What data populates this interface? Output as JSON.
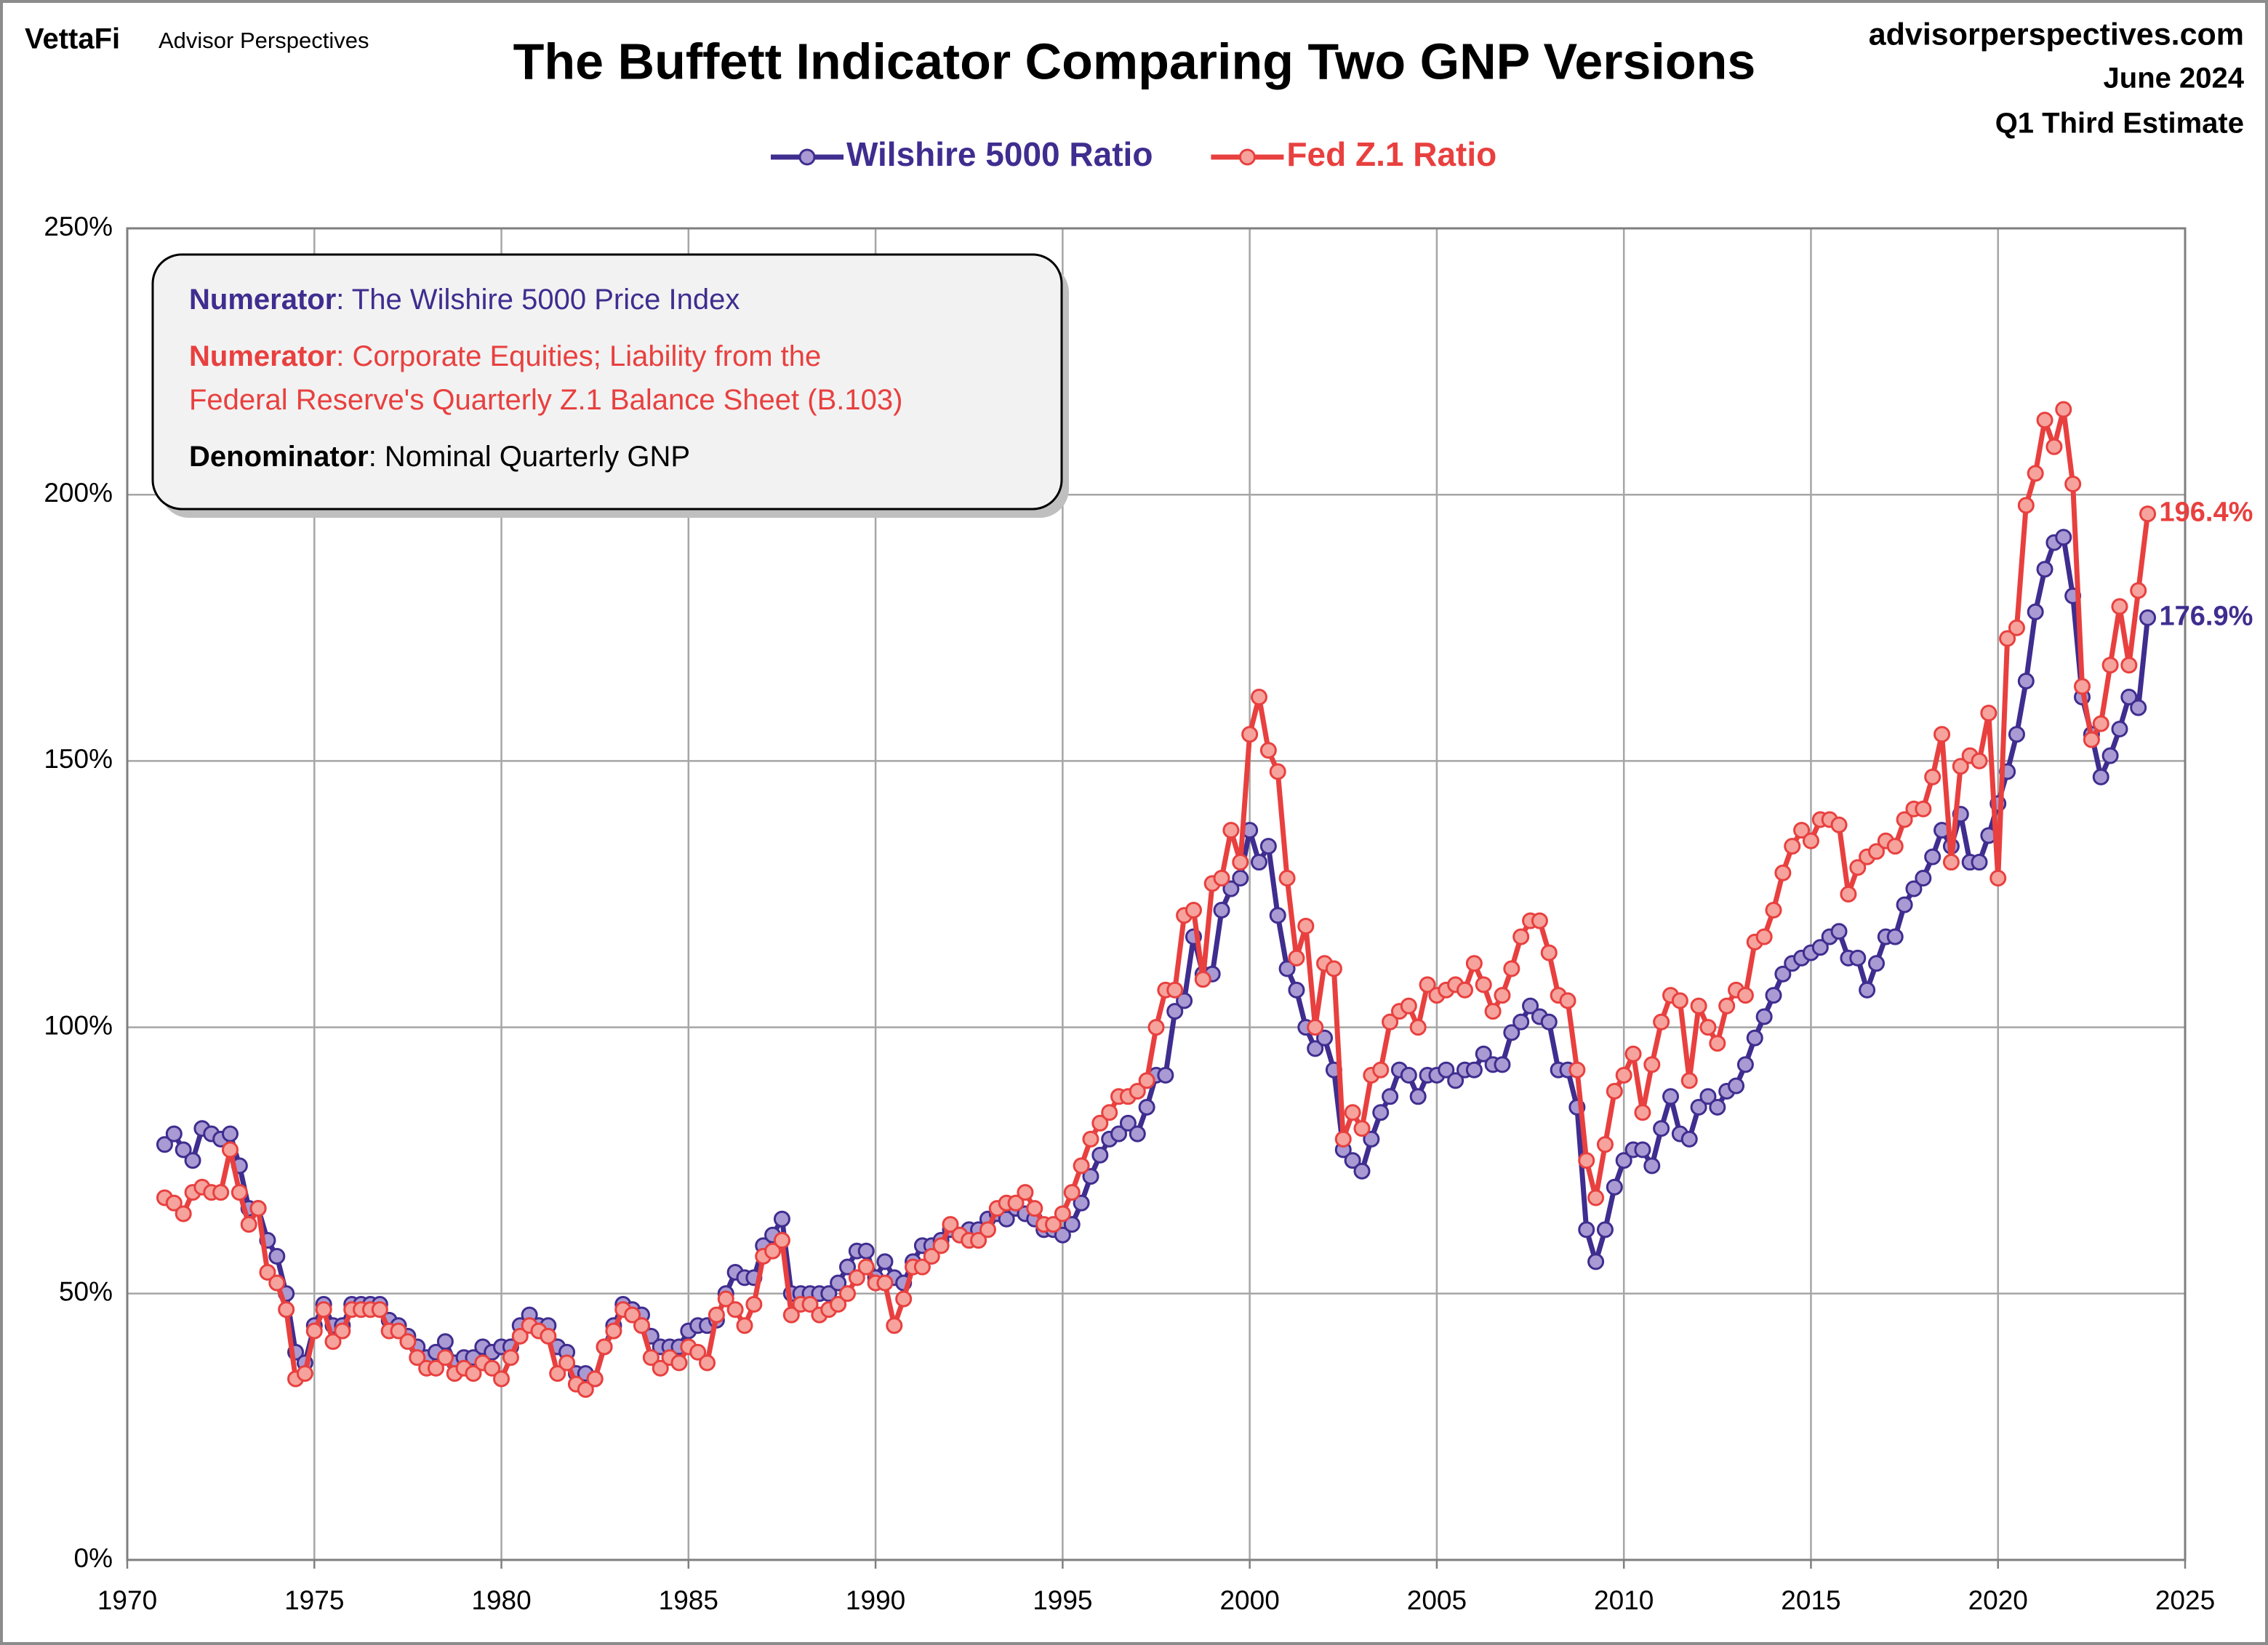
{
  "header": {
    "brand": "VettaFi",
    "sub_brand": "Advisor Perspectives",
    "site": "advisorperspectives.com",
    "date": "June 2024",
    "estimate": "Q1 Third Estimate"
  },
  "chart_data": {
    "type": "line",
    "title": "The Buffett Indicator  Comparing Two GNP Versions",
    "note": [
      {
        "label": "Numerator",
        "lines": [
          ": The Wilshire 5000 Price Index"
        ],
        "color": "#3f2d8f"
      },
      {
        "label": "Numerator",
        "lines": [
          ": Corporate Equities; Liability from the",
          "Federal Reserve's Quarterly Z.1 Balance Sheet (B.103)"
        ],
        "color": "#e8403f"
      },
      {
        "label": "Denominator",
        "lines": [
          ": Nominal Quarterly GNP"
        ],
        "color": "#000000"
      }
    ],
    "x": [
      1971,
      1971.25,
      1971.5,
      1971.75,
      1972,
      1972.25,
      1972.5,
      1972.75,
      1973,
      1973.25,
      1973.5,
      1973.75,
      1974,
      1974.25,
      1974.5,
      1974.75,
      1975,
      1975.25,
      1975.5,
      1975.75,
      1976,
      1976.25,
      1976.5,
      1976.75,
      1977,
      1977.25,
      1977.5,
      1977.75,
      1978,
      1978.25,
      1978.5,
      1978.75,
      1979,
      1979.25,
      1979.5,
      1979.75,
      1980,
      1980.25,
      1980.5,
      1980.75,
      1981,
      1981.25,
      1981.5,
      1981.75,
      1982,
      1982.25,
      1982.5,
      1982.75,
      1983,
      1983.25,
      1983.5,
      1983.75,
      1984,
      1984.25,
      1984.5,
      1984.75,
      1985,
      1985.25,
      1985.5,
      1985.75,
      1986,
      1986.25,
      1986.5,
      1986.75,
      1987,
      1987.25,
      1987.5,
      1987.75,
      1988,
      1988.25,
      1988.5,
      1988.75,
      1989,
      1989.25,
      1989.5,
      1989.75,
      1990,
      1990.25,
      1990.5,
      1990.75,
      1991,
      1991.25,
      1991.5,
      1991.75,
      1992,
      1992.25,
      1992.5,
      1992.75,
      1993,
      1993.25,
      1993.5,
      1993.75,
      1994,
      1994.25,
      1994.5,
      1994.75,
      1995,
      1995.25,
      1995.5,
      1995.75,
      1996,
      1996.25,
      1996.5,
      1996.75,
      1997,
      1997.25,
      1997.5,
      1997.75,
      1998,
      1998.25,
      1998.5,
      1998.75,
      1999,
      1999.25,
      1999.5,
      1999.75,
      2000,
      2000.25,
      2000.5,
      2000.75,
      2001,
      2001.25,
      2001.5,
      2001.75,
      2002,
      2002.25,
      2002.5,
      2002.75,
      2003,
      2003.25,
      2003.5,
      2003.75,
      2004,
      2004.25,
      2004.5,
      2004.75,
      2005,
      2005.25,
      2005.5,
      2005.75,
      2006,
      2006.25,
      2006.5,
      2006.75,
      2007,
      2007.25,
      2007.5,
      2007.75,
      2008,
      2008.25,
      2008.5,
      2008.75,
      2009,
      2009.25,
      2009.5,
      2009.75,
      2010,
      2010.25,
      2010.5,
      2010.75,
      2011,
      2011.25,
      2011.5,
      2011.75,
      2012,
      2012.25,
      2012.5,
      2012.75,
      2013,
      2013.25,
      2013.5,
      2013.75,
      2014,
      2014.25,
      2014.5,
      2014.75,
      2015,
      2015.25,
      2015.5,
      2015.75,
      2016,
      2016.25,
      2016.5,
      2016.75,
      2017,
      2017.25,
      2017.5,
      2017.75,
      2018,
      2018.25,
      2018.5,
      2018.75,
      2019,
      2019.25,
      2019.5,
      2019.75,
      2020,
      2020.25,
      2020.5,
      2020.75,
      2021,
      2021.25,
      2021.5,
      2021.75,
      2022,
      2022.25,
      2022.5,
      2022.75,
      2023,
      2023.25,
      2023.5,
      2023.75,
      2024
    ],
    "series": [
      {
        "name": "Wilshire 5000 Ratio",
        "color": "#3f2d8f",
        "marker_color": "#a99ad3",
        "last_label": "176.9%",
        "values": [
          78,
          80,
          77,
          75,
          81,
          80,
          79,
          80,
          74,
          66,
          66,
          60,
          57,
          50,
          39,
          37,
          44,
          48,
          44,
          44,
          48,
          48,
          48,
          48,
          45,
          44,
          42,
          40,
          38,
          39,
          41,
          37,
          38,
          38,
          40,
          39,
          40,
          40,
          44,
          46,
          44,
          44,
          40,
          39,
          35,
          35,
          34,
          40,
          44,
          48,
          47,
          46,
          42,
          40,
          40,
          40,
          43,
          44,
          44,
          45,
          50,
          54,
          53,
          53,
          59,
          61,
          64,
          50,
          50,
          50,
          50,
          50,
          52,
          55,
          58,
          58,
          53,
          56,
          53,
          52,
          56,
          59,
          59,
          60,
          62,
          61,
          62,
          62,
          64,
          65,
          64,
          66,
          65,
          64,
          62,
          62,
          61,
          63,
          67,
          72,
          76,
          79,
          80,
          82,
          80,
          85,
          91,
          91,
          103,
          105,
          117,
          110,
          110,
          122,
          126,
          128,
          137,
          131,
          134,
          121,
          111,
          107,
          100,
          96,
          98,
          92,
          77,
          75,
          73,
          79,
          84,
          87,
          92,
          91,
          87,
          91,
          91,
          92,
          90,
          92,
          92,
          95,
          93,
          93,
          99,
          101,
          104,
          102,
          101,
          92,
          92,
          85,
          62,
          56,
          62,
          70,
          75,
          77,
          77,
          74,
          81,
          87,
          80,
          79,
          85,
          87,
          85,
          88,
          89,
          93,
          98,
          102,
          106,
          110,
          112,
          113,
          114,
          115,
          117,
          118,
          113,
          113,
          107,
          112,
          117,
          117,
          123,
          126,
          128,
          132,
          137,
          134,
          140,
          131,
          131,
          136,
          142,
          148,
          155,
          165,
          178,
          186,
          191,
          192,
          181,
          162,
          155,
          147,
          151,
          156,
          162,
          160,
          176.9
        ]
      },
      {
        "name": "Fed Z.1 Ratio",
        "color": "#e8403f",
        "marker_color": "#f5a39c",
        "last_label": "196.4%",
        "values": [
          68,
          67,
          65,
          69,
          70,
          69,
          69,
          77,
          69,
          63,
          66,
          54,
          52,
          47,
          34,
          35,
          43,
          47,
          41,
          43,
          47,
          47,
          47,
          47,
          43,
          43,
          41,
          38,
          36,
          36,
          38,
          35,
          36,
          35,
          37,
          36,
          34,
          38,
          42,
          44,
          43,
          42,
          35,
          37,
          33,
          32,
          34,
          40,
          43,
          47,
          46,
          44,
          38,
          36,
          38,
          37,
          40,
          39,
          37,
          46,
          49,
          47,
          44,
          48,
          57,
          58,
          60,
          46,
          48,
          48,
          46,
          47,
          48,
          50,
          53,
          55,
          52,
          52,
          44,
          49,
          55,
          55,
          57,
          59,
          63,
          61,
          60,
          60,
          62,
          66,
          67,
          67,
          69,
          66,
          63,
          63,
          65,
          69,
          74,
          79,
          82,
          84,
          87,
          87,
          88,
          90,
          100,
          107,
          107,
          121,
          122,
          109,
          127,
          128,
          137,
          131,
          155,
          162,
          152,
          148,
          128,
          113,
          119,
          100,
          112,
          111,
          79,
          84,
          81,
          91,
          92,
          101,
          103,
          104,
          100,
          108,
          106,
          107,
          108,
          107,
          112,
          108,
          103,
          106,
          111,
          117,
          120,
          120,
          114,
          106,
          105,
          92,
          75,
          68,
          78,
          88,
          91,
          95,
          84,
          93,
          101,
          106,
          105,
          90,
          104,
          100,
          97,
          104,
          107,
          106,
          116,
          117,
          122,
          129,
          134,
          137,
          135,
          139,
          139,
          138,
          125,
          130,
          132,
          133,
          135,
          134,
          139,
          141,
          141,
          147,
          155,
          131,
          149,
          151,
          150,
          159,
          128,
          173,
          175,
          198,
          204,
          214,
          209,
          216,
          202,
          164,
          154,
          157,
          168,
          179,
          168,
          182,
          196.4
        ]
      }
    ],
    "xlim": [
      1970,
      2025
    ],
    "xticks": [
      1970,
      1975,
      1980,
      1985,
      1990,
      1995,
      2000,
      2005,
      2010,
      2015,
      2020,
      2025
    ],
    "ylim": [
      0,
      250
    ],
    "yticks": [
      {
        "value": 0,
        "label": "0%"
      },
      {
        "value": 50,
        "label": "50%"
      },
      {
        "value": 100,
        "label": "100%"
      },
      {
        "value": 150,
        "label": "150%"
      },
      {
        "value": 200,
        "label": "200%"
      },
      {
        "value": 250,
        "label": "250%"
      }
    ],
    "grid": true
  }
}
